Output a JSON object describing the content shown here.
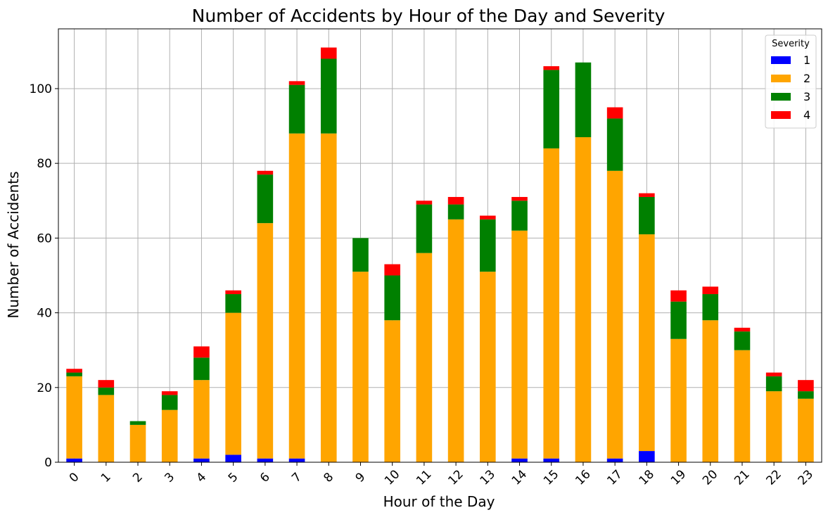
{
  "chart_data": {
    "type": "bar",
    "stacked": true,
    "title": "Number of Accidents by Hour of the Day and Severity",
    "xlabel": "Hour of the Day",
    "ylabel": "Number of Accidents",
    "ylim": [
      0,
      116
    ],
    "yticks": [
      0,
      20,
      40,
      60,
      80,
      100
    ],
    "grid": true,
    "legend": {
      "title": "Severity",
      "placement": "top-right"
    },
    "categories": [
      "0",
      "1",
      "2",
      "3",
      "4",
      "5",
      "6",
      "7",
      "8",
      "9",
      "10",
      "11",
      "12",
      "13",
      "14",
      "15",
      "16",
      "17",
      "18",
      "19",
      "20",
      "21",
      "22",
      "23"
    ],
    "series": [
      {
        "name": "1",
        "color": "#0000ff",
        "values": [
          1,
          0,
          0,
          0,
          1,
          2,
          1,
          1,
          0,
          0,
          0,
          0,
          0,
          0,
          1,
          1,
          0,
          1,
          3,
          0,
          0,
          0,
          0,
          0
        ]
      },
      {
        "name": "2",
        "color": "#ffa500",
        "values": [
          22,
          18,
          10,
          14,
          21,
          38,
          63,
          87,
          88,
          51,
          38,
          56,
          65,
          51,
          61,
          83,
          87,
          77,
          58,
          33,
          38,
          30,
          19,
          17
        ]
      },
      {
        "name": "3",
        "color": "#008000",
        "values": [
          1,
          2,
          1,
          4,
          6,
          5,
          13,
          13,
          20,
          9,
          12,
          13,
          4,
          14,
          8,
          21,
          20,
          14,
          10,
          10,
          7,
          5,
          4,
          2
        ]
      },
      {
        "name": "4",
        "color": "#ff0000",
        "values": [
          1,
          2,
          0,
          1,
          3,
          1,
          1,
          1,
          3,
          0,
          3,
          1,
          2,
          1,
          1,
          1,
          0,
          3,
          1,
          3,
          2,
          1,
          1,
          3
        ]
      }
    ]
  }
}
